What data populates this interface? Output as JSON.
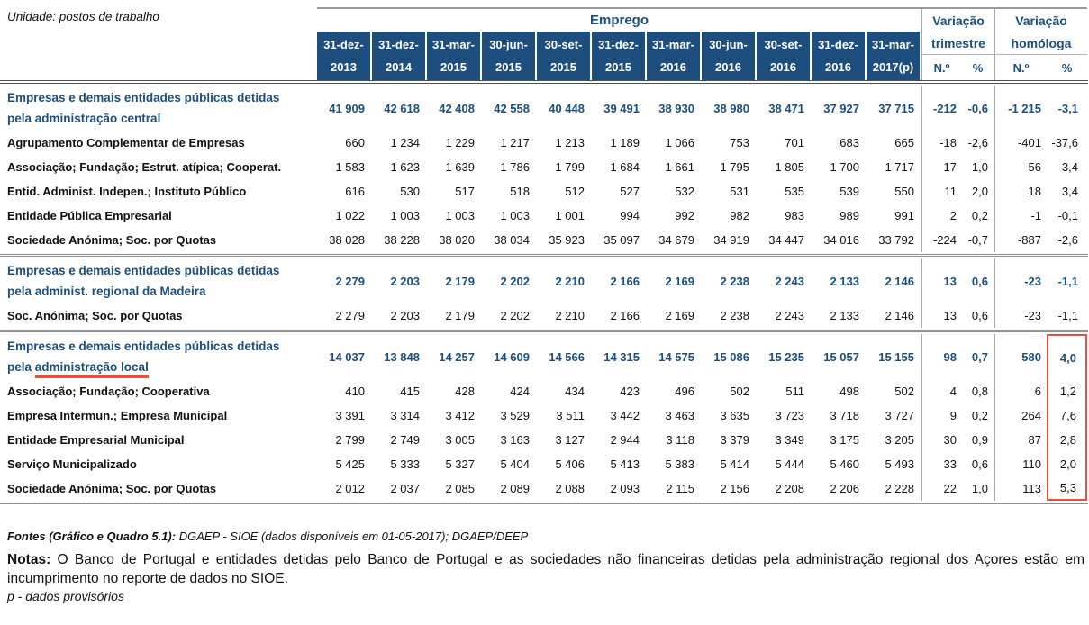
{
  "unit_label": "Unidade: postos de trabalho",
  "header": {
    "group_title": "Emprego",
    "date_columns": [
      {
        "l1": "31-dez-",
        "l2": "2013"
      },
      {
        "l1": "31-dez-",
        "l2": "2014"
      },
      {
        "l1": "31-mar-",
        "l2": "2015"
      },
      {
        "l1": "30-jun-",
        "l2": "2015"
      },
      {
        "l1": "30-set-",
        "l2": "2015"
      },
      {
        "l1": "31-dez-",
        "l2": "2015"
      },
      {
        "l1": "31-mar-",
        "l2": "2016"
      },
      {
        "l1": "30-jun-",
        "l2": "2016"
      },
      {
        "l1": "30-set-",
        "l2": "2016"
      },
      {
        "l1": "31-dez-",
        "l2": "2016"
      },
      {
        "l1": "31-mar-",
        "l2": "2017(p)"
      }
    ],
    "var_trimestre": {
      "l1": "Variação",
      "l2": "trimestre"
    },
    "var_homologa": {
      "l1": "Variação",
      "l2": "homóloga"
    },
    "num_label": "N.º",
    "pct_label": "%"
  },
  "blocks": [
    {
      "id": "administracao-central",
      "header_row": {
        "label_lines": [
          "Empresas e demais entidades públicas detidas",
          "pela administração central"
        ],
        "cells": [
          "41 909",
          "42 618",
          "42 408",
          "42 558",
          "40 448",
          "39 491",
          "38 930",
          "38 980",
          "38 471",
          "37 927",
          "37 715",
          "-212",
          "-0,6",
          "-1 215",
          "-3,1"
        ]
      },
      "rows": [
        {
          "label": "Agrupamento Complementar de Empresas",
          "cells": [
            "660",
            "1 234",
            "1 229",
            "1 217",
            "1 213",
            "1 189",
            "1 066",
            "753",
            "701",
            "683",
            "665",
            "-18",
            "-2,6",
            "-401",
            "-37,6"
          ]
        },
        {
          "label": "Associação; Fundação; Estrut. atípica; Cooperat.",
          "cells": [
            "1 583",
            "1 623",
            "1 639",
            "1 786",
            "1 799",
            "1 684",
            "1 661",
            "1 795",
            "1 805",
            "1 700",
            "1 717",
            "17",
            "1,0",
            "56",
            "3,4"
          ]
        },
        {
          "label": "Entid. Administ. Indepen.; Instituto Público",
          "cells": [
            "616",
            "530",
            "517",
            "518",
            "512",
            "527",
            "532",
            "531",
            "535",
            "539",
            "550",
            "11",
            "2,0",
            "18",
            "3,4"
          ]
        },
        {
          "label": "Entidade Pública Empresarial",
          "cells": [
            "1 022",
            "1 003",
            "1 003",
            "1 003",
            "1 001",
            "994",
            "992",
            "982",
            "983",
            "989",
            "991",
            "2",
            "0,2",
            "-1",
            "-0,1"
          ]
        },
        {
          "label": "Sociedade Anónima; Soc. por Quotas",
          "cells": [
            "38 028",
            "38 228",
            "38 020",
            "38 034",
            "35 923",
            "35 097",
            "34 679",
            "34 919",
            "34 447",
            "34 016",
            "33 792",
            "-224",
            "-0,7",
            "-887",
            "-2,6"
          ]
        }
      ]
    },
    {
      "id": "regional-madeira",
      "header_row": {
        "label_lines": [
          "Empresas e demais entidades públicas detidas",
          "pela administ. regional da Madeira"
        ],
        "cells": [
          "2 279",
          "2 203",
          "2 179",
          "2 202",
          "2 210",
          "2 166",
          "2 169",
          "2 238",
          "2 243",
          "2 133",
          "2 146",
          "13",
          "0,6",
          "-23",
          "-1,1"
        ]
      },
      "rows": [
        {
          "label": "Soc. Anónima; Soc. por Quotas",
          "cells": [
            "2 279",
            "2 203",
            "2 179",
            "2 202",
            "2 210",
            "2 166",
            "2 169",
            "2 238",
            "2 243",
            "2 133",
            "2 146",
            "13",
            "0,6",
            "-23",
            "-1,1"
          ]
        }
      ]
    },
    {
      "id": "administracao-local",
      "highlight_last_column": true,
      "header_row": {
        "label_lines": [
          "Empresas e demais entidades públicas detidas",
          "pela administração local"
        ],
        "label_line2_prefix": "pela ",
        "label_line2_underlined": "administração local",
        "cells": [
          "14 037",
          "13 848",
          "14 257",
          "14 609",
          "14 566",
          "14 315",
          "14 575",
          "15 086",
          "15 235",
          "15 057",
          "15 155",
          "98",
          "0,7",
          "580",
          "4,0"
        ]
      },
      "rows": [
        {
          "label": "Associação; Fundação; Cooperativa",
          "cells": [
            "410",
            "415",
            "428",
            "424",
            "434",
            "423",
            "496",
            "502",
            "511",
            "498",
            "502",
            "4",
            "0,8",
            "6",
            "1,2"
          ]
        },
        {
          "label": "Empresa Intermun.; Empresa Municipal",
          "cells": [
            "3 391",
            "3 314",
            "3 412",
            "3 529",
            "3 511",
            "3 442",
            "3 463",
            "3 635",
            "3 723",
            "3 718",
            "3 727",
            "9",
            "0,2",
            "264",
            "7,6"
          ]
        },
        {
          "label": "Entidade Empresarial Municipal",
          "cells": [
            "2 799",
            "2 749",
            "3 005",
            "3 163",
            "3 127",
            "2 944",
            "3 118",
            "3 379",
            "3 349",
            "3 175",
            "3 205",
            "30",
            "0,9",
            "87",
            "2,8"
          ]
        },
        {
          "label": "Serviço Municipalizado",
          "cells": [
            "5 425",
            "5 333",
            "5 327",
            "5 404",
            "5 406",
            "5 413",
            "5 383",
            "5 414",
            "5 444",
            "5 460",
            "5 493",
            "33",
            "0,6",
            "110",
            "2,0"
          ]
        },
        {
          "label": "Sociedade Anónima; Soc. por Quotas",
          "cells": [
            "2 012",
            "2 037",
            "2 085",
            "2 089",
            "2 088",
            "2 093",
            "2 115",
            "2 156",
            "2 208",
            "2 206",
            "2 228",
            "22",
            "1,0",
            "113",
            "5,3"
          ]
        }
      ]
    }
  ],
  "footer": {
    "fontes_bold": "Fontes (Gráfico e Quadro 5.1):",
    "fontes_rest": " DGAEP - SIOE (dados disponíveis em 01-05-2017); DGAEP/DEEP",
    "notas_bold": "Notas:",
    "notas_rest": " O Banco de Portugal e entidades detidas pelo Banco de Portugal e as sociedades não financeiras detidas pela administração regional dos Açores estão em incumprimento no reporte de dados no SIOE.",
    "provisional_note": "p - dados provisórios"
  },
  "colors": {
    "navy": "#1d4e7e",
    "red": "#e8503a"
  }
}
